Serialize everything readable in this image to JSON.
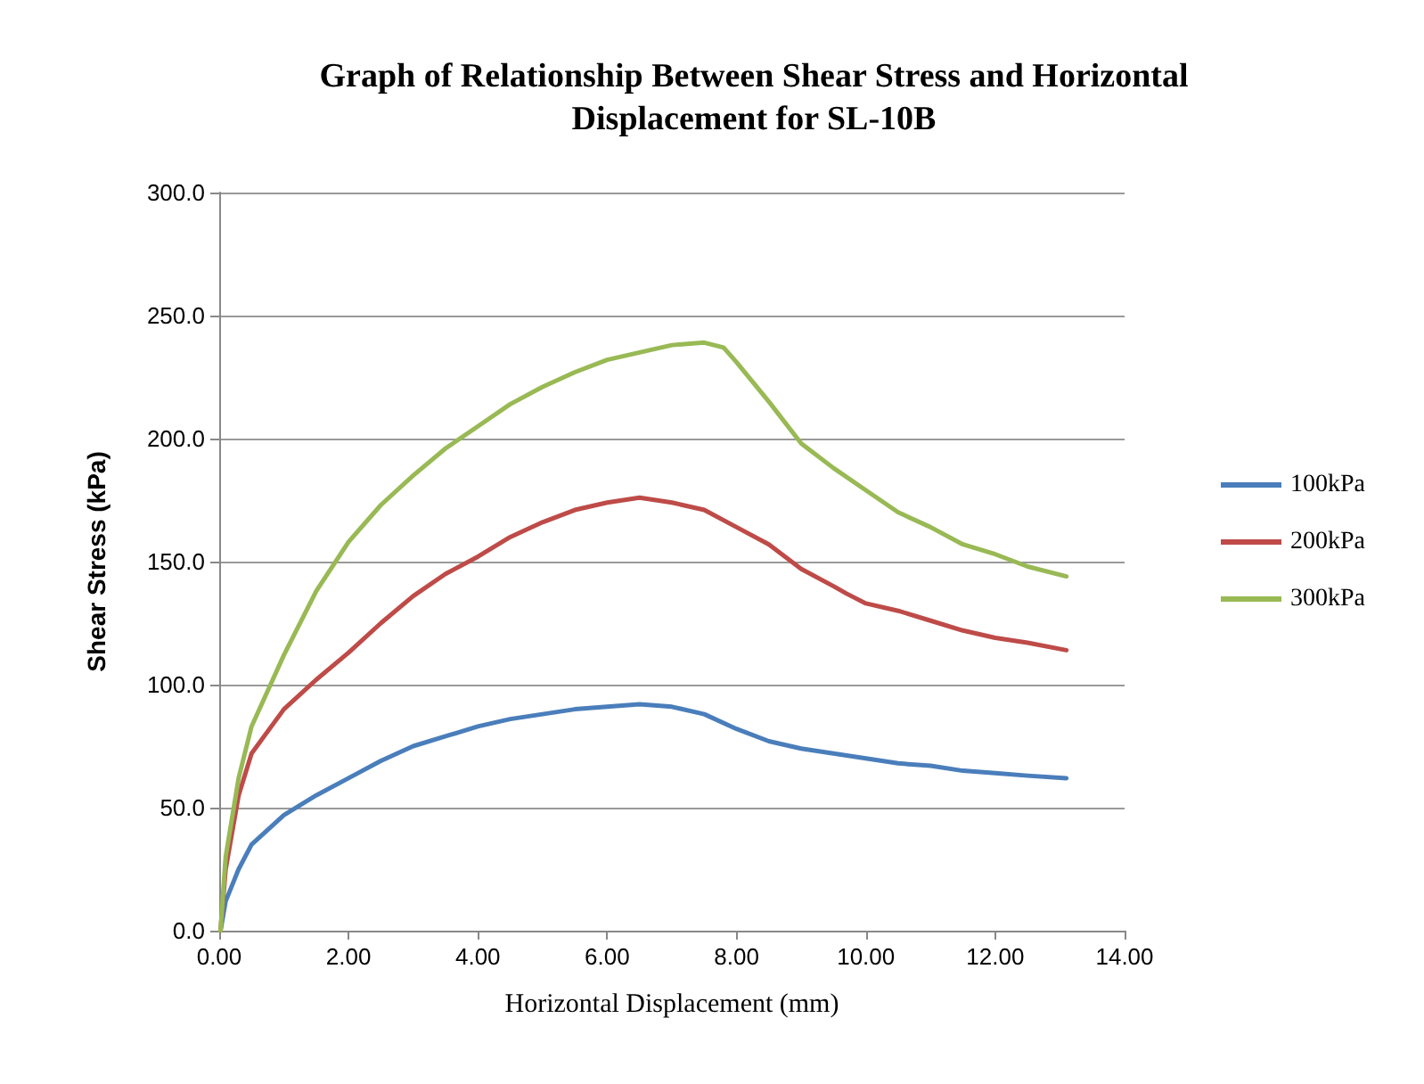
{
  "chart_data": {
    "type": "line",
    "title": "Graph of Relationship Between Shear Stress and Horizontal\nDisplacement for SL-10B",
    "xlabel": "Horizontal Displacement (mm)",
    "ylabel": "Shear Stress (kPa)",
    "xlim": [
      0,
      14
    ],
    "xticks": [
      {
        "value": 0,
        "label": "0.00"
      },
      {
        "value": 2,
        "label": "2.00"
      },
      {
        "value": 4,
        "label": "4.00"
      },
      {
        "value": 6,
        "label": "6.00"
      },
      {
        "value": 8,
        "label": "8.00"
      },
      {
        "value": 10,
        "label": "10.00"
      },
      {
        "value": 12,
        "label": "12.00"
      },
      {
        "value": 14,
        "label": "14.00"
      }
    ],
    "ylim": [
      0,
      300
    ],
    "yticks": [
      {
        "value": 0,
        "label": "0.0"
      },
      {
        "value": 50,
        "label": "50.0"
      },
      {
        "value": 100,
        "label": "100.0"
      },
      {
        "value": 150,
        "label": "150.0"
      },
      {
        "value": 200,
        "label": "200.0"
      },
      {
        "value": 250,
        "label": "250.0"
      },
      {
        "value": 300,
        "label": "300.0"
      }
    ],
    "grid": "y",
    "legend": "right",
    "marker": "none",
    "line_style": "solid",
    "series": [
      {
        "name": "100kPa",
        "color": "#4a7ebb",
        "x": [
          0.02,
          0.1,
          0.3,
          0.5,
          1,
          1.5,
          2,
          2.5,
          3,
          3.5,
          4,
          4.5,
          5,
          5.5,
          6,
          6.5,
          7,
          7.5,
          8,
          8.5,
          9,
          9.5,
          10,
          10.5,
          11,
          11.5,
          12,
          12.5,
          13.1
        ],
        "values": [
          0,
          12,
          25,
          35,
          47,
          55,
          62,
          69,
          75,
          79,
          83,
          86,
          88,
          90,
          91,
          92,
          91,
          88,
          82,
          77,
          74,
          72,
          70,
          68,
          67,
          65,
          64,
          63,
          62
        ]
      },
      {
        "name": "200kPa",
        "color": "#be4b48",
        "x": [
          0.02,
          0.1,
          0.3,
          0.5,
          1,
          1.5,
          2,
          2.5,
          3,
          3.5,
          4,
          4.5,
          5,
          5.5,
          6,
          6.5,
          7,
          7.5,
          8,
          8.5,
          9,
          9.5,
          9.7,
          10,
          10.5,
          11,
          11.5,
          12,
          12.5,
          13.1
        ],
        "values": [
          0,
          25,
          55,
          72,
          90,
          102,
          113,
          125,
          136,
          145,
          152,
          160,
          166,
          171,
          174,
          176,
          174,
          171,
          164,
          157,
          147,
          140,
          137,
          133,
          130,
          126,
          122,
          119,
          117,
          114
        ]
      },
      {
        "name": "300kPa",
        "color": "#98b954",
        "x": [
          0.02,
          0.1,
          0.3,
          0.5,
          1,
          1.5,
          2,
          2.5,
          3,
          3.5,
          4,
          4.5,
          5,
          5.5,
          6,
          6.5,
          7,
          7.5,
          7.8,
          8,
          8.5,
          9,
          9.5,
          10,
          10.5,
          11,
          11.5,
          12,
          12.5,
          13.1
        ],
        "values": [
          0,
          30,
          62,
          83,
          112,
          138,
          158,
          173,
          185,
          196,
          205,
          214,
          221,
          227,
          232,
          235,
          238,
          239,
          237,
          231,
          215,
          198,
          188,
          179,
          170,
          164,
          157,
          153,
          148,
          144
        ]
      }
    ]
  }
}
